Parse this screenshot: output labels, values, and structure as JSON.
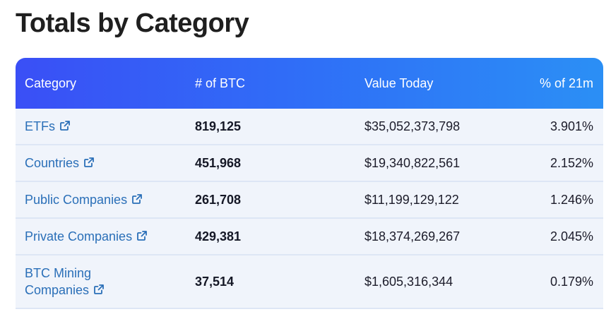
{
  "title": "Totals by Category",
  "table": {
    "headers": {
      "category": "Category",
      "btc": "# of BTC",
      "value": "Value Today",
      "pct": "% of 21m"
    },
    "rows": [
      {
        "category": "ETFs",
        "category_line2": "",
        "btc": "819,125",
        "value": "$35,052,373,798",
        "pct": "3.901%"
      },
      {
        "category": "Countries",
        "category_line2": "",
        "btc": "451,968",
        "value": "$19,340,822,561",
        "pct": "2.152%"
      },
      {
        "category": "Public Companies",
        "category_line2": "",
        "btc": "261,708",
        "value": "$11,199,129,122",
        "pct": "1.246%"
      },
      {
        "category": "Private Companies",
        "category_line2": "",
        "btc": "429,381",
        "value": "$18,374,269,267",
        "pct": "2.045%"
      },
      {
        "category": "BTC Mining",
        "category_line2": "Companies",
        "btc": "37,514",
        "value": "$1,605,316,344",
        "pct": "0.179%"
      }
    ]
  },
  "icons": {
    "link": "external-link-icon"
  },
  "colors": {
    "header_start": "#3a4ff6",
    "header_end": "#2b8ff5",
    "row_bg": "#f0f4fb",
    "link": "#2a6fb8"
  }
}
